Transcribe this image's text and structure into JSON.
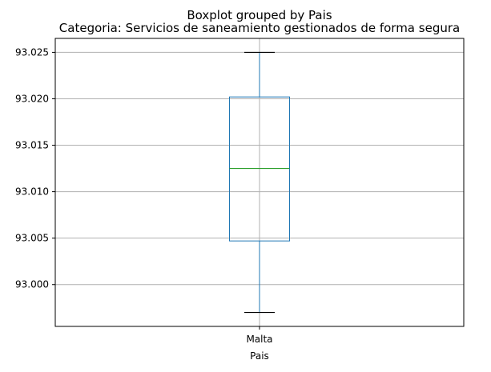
{
  "chart_data": {
    "type": "box",
    "suptitle": "Boxplot grouped by Pais",
    "title": "Categoria: Servicios de saneamiento gestionados de forma segura",
    "xlabel": "Pais",
    "ylabel": "",
    "categories": [
      "Malta"
    ],
    "boxes": [
      {
        "category": "Malta",
        "whisker_low": 92.997,
        "q1": 93.0047,
        "median": 93.0125,
        "q3": 93.0202,
        "whisker_high": 93.025
      }
    ],
    "ylim": [
      92.9955,
      93.0265
    ],
    "yticks": [
      93.0,
      93.005,
      93.01,
      93.015,
      93.02,
      93.025
    ],
    "ytick_labels": [
      "93.000",
      "93.005",
      "93.010",
      "93.015",
      "93.020",
      "93.025"
    ],
    "grid": true,
    "colors": {
      "box": "#1f77b4",
      "median": "#2ca02c",
      "whisker": "#1f77b4",
      "cap": "#000000",
      "grid": "#b0b0b0",
      "axes": "#000000"
    }
  }
}
